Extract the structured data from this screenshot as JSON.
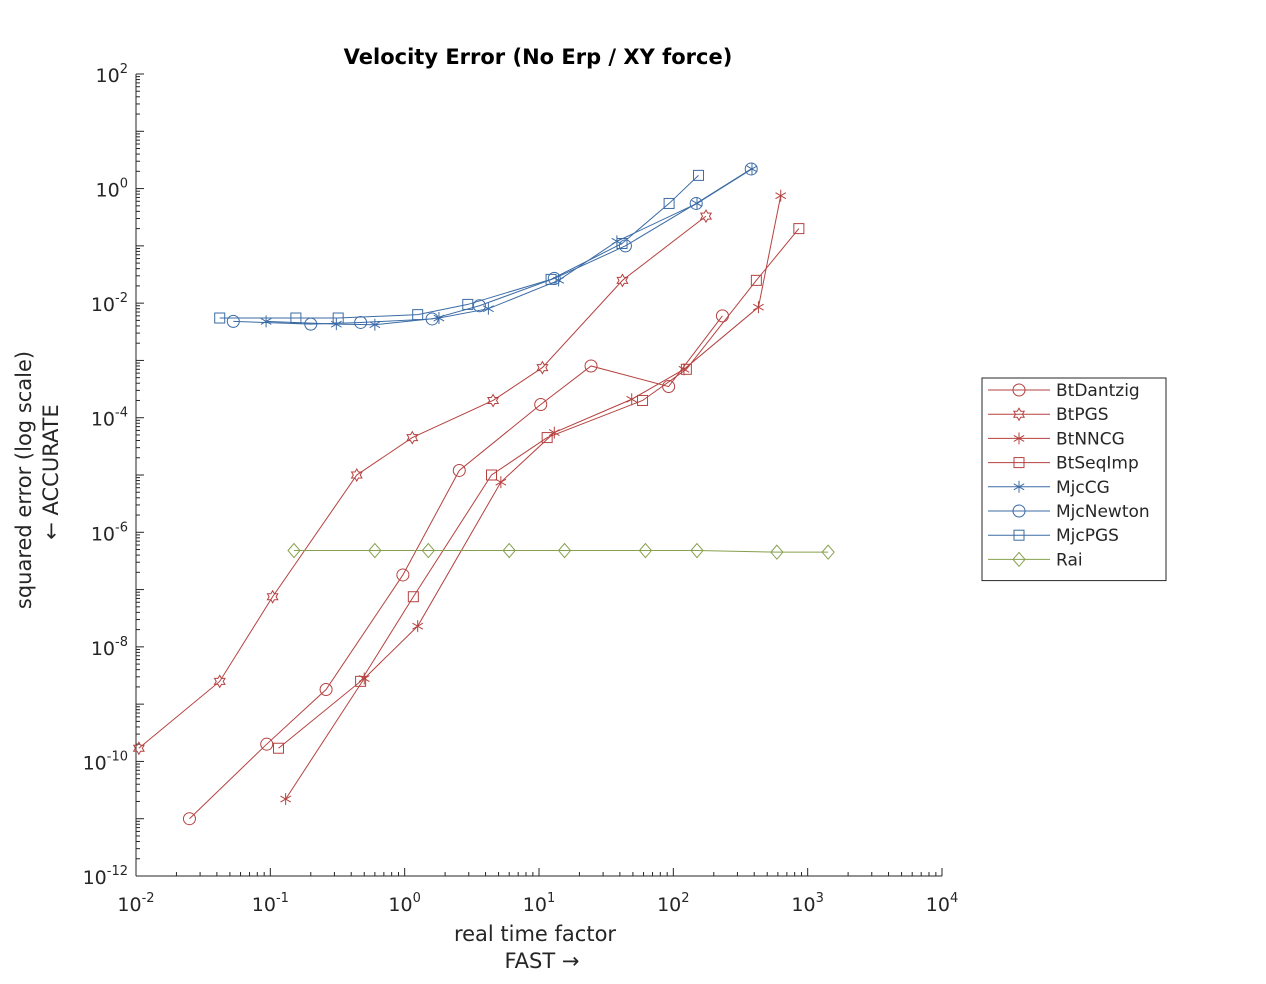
{
  "chart_data": {
    "type": "scatter",
    "title": "Velocity Error (No Erp / XY force)",
    "xlabel": [
      "real time factor",
      "FAST →"
    ],
    "ylabel": [
      "squared error (log scale)",
      "← ACCURATE"
    ],
    "xscale": "log",
    "yscale": "log",
    "xlim": [
      0.01,
      10000
    ],
    "ylim": [
      1e-12,
      100
    ],
    "xticks": [
      {
        "base": "10",
        "exp": "-2"
      },
      {
        "base": "10",
        "exp": "-1"
      },
      {
        "base": "10",
        "exp": "0"
      },
      {
        "base": "10",
        "exp": "1"
      },
      {
        "base": "10",
        "exp": "2"
      },
      {
        "base": "10",
        "exp": "3"
      },
      {
        "base": "10",
        "exp": "4"
      }
    ],
    "yticks": [
      {
        "base": "10",
        "exp": "-12"
      },
      {
        "base": "10",
        "exp": "-10"
      },
      {
        "base": "10",
        "exp": "-8"
      },
      {
        "base": "10",
        "exp": "-6"
      },
      {
        "base": "10",
        "exp": "-4"
      },
      {
        "base": "10",
        "exp": "-2"
      },
      {
        "base": "10",
        "exp": "0"
      },
      {
        "base": "10",
        "exp": "2"
      }
    ],
    "grid": false,
    "legend_position": "outside-right",
    "series": [
      {
        "name": "BtDantzig",
        "color": "#b5413f",
        "marker": "circle",
        "x": [
          0.025,
          0.094,
          0.26,
          0.97,
          2.55,
          10.3,
          24.4,
          92.3,
          232
        ],
        "y": [
          1e-11,
          2e-10,
          1.8e-09,
          1.8e-07,
          1.2e-05,
          0.00017,
          0.0008,
          0.00035,
          0.006
        ]
      },
      {
        "name": "BtPGS",
        "color": "#b5413f",
        "marker": "hexagram",
        "x": [
          0.0105,
          0.042,
          0.104,
          0.44,
          1.14,
          4.55,
          10.6,
          41.8,
          175
        ],
        "y": [
          1.7e-10,
          2.5e-09,
          7.5e-08,
          1e-05,
          4.5e-05,
          0.0002,
          0.00075,
          0.025,
          0.33
        ]
      },
      {
        "name": "BtNNCG",
        "color": "#b5413f",
        "marker": "asterisk",
        "x": [
          0.13,
          0.5,
          1.25,
          5.2,
          13,
          49,
          120,
          430,
          630
        ],
        "y": [
          2.2e-11,
          2.8e-09,
          2.3e-08,
          7.5e-06,
          5.5e-05,
          0.00021,
          0.0007,
          0.0085,
          0.75
        ]
      },
      {
        "name": "BtSeqImp",
        "color": "#b5413f",
        "marker": "square",
        "x": [
          0.115,
          0.47,
          1.16,
          4.43,
          11.5,
          59,
          125,
          415,
          860
        ],
        "y": [
          1.7e-10,
          2.5e-09,
          7.5e-08,
          1e-05,
          4.5e-05,
          0.0002,
          0.0007,
          0.025,
          0.2
        ]
      },
      {
        "name": "MjcCG",
        "color": "#3b6ba5",
        "marker": "asterisk",
        "x": [
          0.093,
          0.31,
          0.6,
          1.8,
          4.2,
          14,
          38,
          150,
          385
        ],
        "y": [
          0.0048,
          0.0043,
          0.0042,
          0.0055,
          0.008,
          0.025,
          0.12,
          0.55,
          2.2
        ]
      },
      {
        "name": "MjcNewton",
        "color": "#3b6ba5",
        "marker": "circle",
        "x": [
          0.053,
          0.2,
          0.47,
          1.6,
          3.6,
          13,
          44,
          148,
          380
        ],
        "y": [
          0.0048,
          0.0043,
          0.0046,
          0.0053,
          0.009,
          0.027,
          0.1,
          0.55,
          2.2
        ]
      },
      {
        "name": "MjcPGS",
        "color": "#3b6ba5",
        "marker": "square",
        "x": [
          0.042,
          0.155,
          0.32,
          1.25,
          2.95,
          12.3,
          41.5,
          93,
          154
        ],
        "y": [
          0.0055,
          0.0055,
          0.0055,
          0.0063,
          0.0095,
          0.026,
          0.11,
          0.55,
          1.7
        ]
      },
      {
        "name": "Rai",
        "color": "#86a04d",
        "marker": "diamond",
        "x": [
          0.15,
          0.6,
          1.5,
          6,
          15.5,
          62,
          150,
          590,
          1420
        ],
        "y": [
          4.8e-07,
          4.8e-07,
          4.8e-07,
          4.8e-07,
          4.8e-07,
          4.8e-07,
          4.8e-07,
          4.5e-07,
          4.5e-07
        ]
      }
    ]
  }
}
